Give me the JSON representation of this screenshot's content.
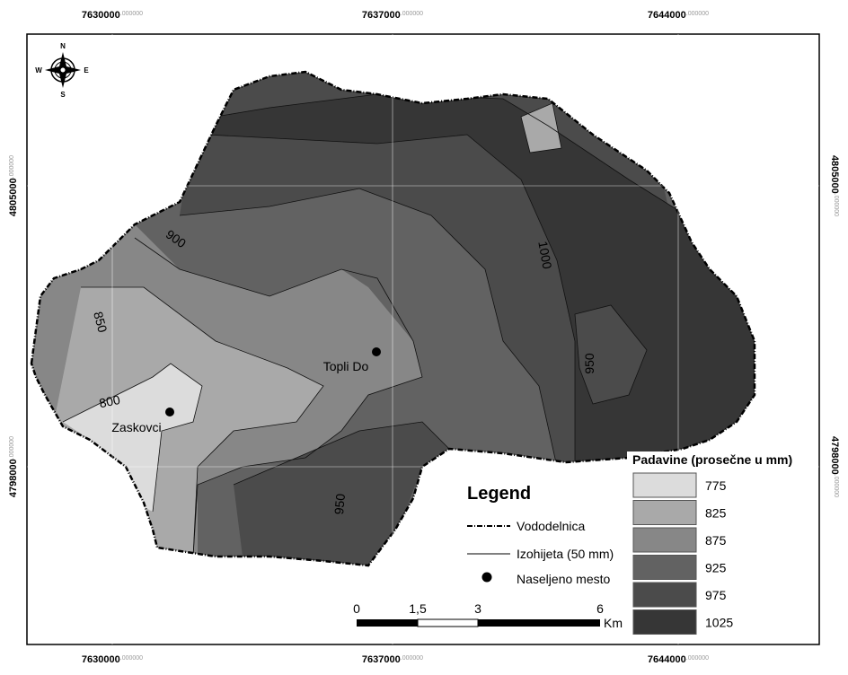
{
  "map": {
    "x_labels": [
      {
        "main": "7630000",
        "decimals": ".000000"
      },
      {
        "main": "7637000",
        "decimals": ".000000"
      },
      {
        "main": "7644000",
        "decimals": ".000000"
      }
    ],
    "y_labels": [
      {
        "main": "4805000",
        "decimals": ".000000"
      },
      {
        "main": "4798000",
        "decimals": ".000000"
      }
    ],
    "compass": {
      "n": "N",
      "s": "S",
      "e": "E",
      "w": "W"
    },
    "contour_labels": [
      "900",
      "850",
      "800",
      "1000",
      "950",
      "950"
    ],
    "places": [
      "Topli Do",
      "Zaskovci"
    ],
    "legend": {
      "title": "Legend",
      "items": [
        "Vododelnica",
        "Izohijeta (50 mm)",
        "Naseljeno mesto"
      ]
    },
    "scale": {
      "ticks": [
        "0",
        "1,5",
        "3",
        "6"
      ],
      "unit": "Km"
    },
    "classes": {
      "title": "Padavine (prosečne u mm)",
      "items": [
        {
          "label": "775",
          "color": "#dcdcdc"
        },
        {
          "label": "825",
          "color": "#a9a9a9"
        },
        {
          "label": "875",
          "color": "#878787"
        },
        {
          "label": "925",
          "color": "#626262"
        },
        {
          "label": "975",
          "color": "#4b4b4b"
        },
        {
          "label": "1025",
          "color": "#363636"
        }
      ]
    }
  }
}
